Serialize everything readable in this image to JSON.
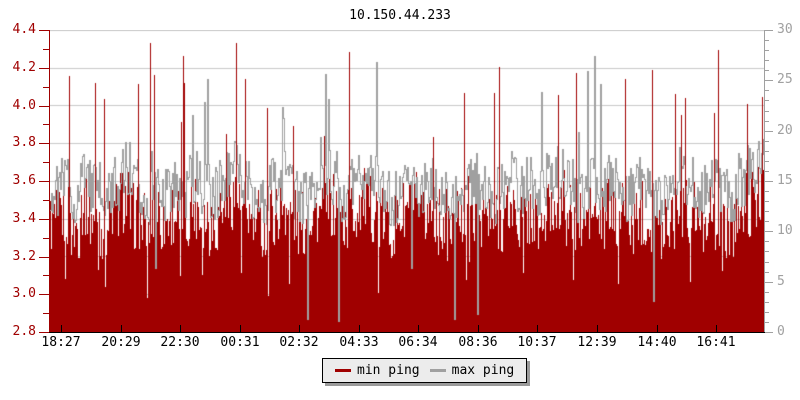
{
  "title": "10.150.44.233",
  "colors": {
    "min_series": "#a00000",
    "max_series": "#a0a0a0",
    "grid": "#c9c9c9",
    "left_axis": "#a00000",
    "right_axis": "#a0a0a0",
    "bottom_axis": "#000000",
    "legend_bg": "#ececec",
    "legend_shadow": "#9a9a9a"
  },
  "legend": {
    "items": [
      {
        "label": "min ping",
        "color": "#a00000",
        "name": "min-ping"
      },
      {
        "label": "max ping",
        "color": "#a0a0a0",
        "name": "max-ping"
      }
    ]
  },
  "chart_data": {
    "type": "area",
    "title": "10.150.44.233",
    "x_tick_labels": [
      "18:27",
      "20:29",
      "22:30",
      "00:31",
      "02:32",
      "04:33",
      "06:34",
      "08:36",
      "10:37",
      "12:39",
      "14:40",
      "16:41"
    ],
    "left_axis": {
      "min": 2.8,
      "max": 4.4,
      "major_step": 0.2,
      "minor_step": 0.1,
      "tick_labels": [
        "4.4",
        "4.2",
        "4.0",
        "3.8",
        "3.6",
        "3.4",
        "3.2",
        "3.0",
        "2.8"
      ]
    },
    "right_axis": {
      "min": 0,
      "max": 30,
      "major_step": 5,
      "minor_step": 1,
      "tick_labels": [
        "30",
        "25",
        "20",
        "15",
        "10",
        "5",
        "0"
      ]
    },
    "grid": "horizontal-major",
    "legend_position": "bottom-center",
    "series": [
      {
        "name": "min ping",
        "type": "filled-area",
        "color": "#a00000",
        "baseline": 2.8,
        "values": [
          3.38,
          3.42,
          3.35,
          3.48,
          3.4,
          3.36,
          3.44,
          3.5,
          3.41,
          3.37,
          3.45,
          3.39,
          3.43,
          3.36,
          3.47,
          3.41,
          3.38,
          3.46,
          3.52,
          3.44,
          3.39,
          3.35,
          3.42,
          3.48,
          3.4,
          3.37,
          3.44,
          3.41,
          3.46,
          3.38,
          3.43,
          3.5,
          3.45,
          3.39,
          3.36,
          3.42,
          3.47,
          3.4,
          3.44,
          3.38,
          3.35,
          3.41,
          3.46,
          3.43,
          3.37,
          3.4,
          3.45,
          3.39,
          3.42,
          3.36,
          3.44,
          3.48,
          3.41,
          3.37,
          3.43,
          3.39,
          3.46,
          3.42,
          3.38,
          3.44,
          3.4,
          3.35,
          3.42,
          3.47,
          3.43,
          3.39,
          3.45,
          3.41,
          3.37,
          3.44,
          3.48,
          3.52
        ]
      },
      {
        "name": "max ping",
        "type": "line",
        "color": "#a0a0a0",
        "values": [
          3.55,
          3.6,
          3.52,
          3.64,
          3.56,
          3.5,
          3.58,
          3.66,
          3.57,
          3.52,
          3.61,
          3.54,
          3.59,
          3.51,
          3.63,
          3.56,
          3.53,
          3.62,
          3.68,
          3.6,
          3.54,
          3.5,
          3.58,
          3.64,
          3.55,
          3.52,
          3.6,
          3.56,
          3.62,
          3.53,
          3.59,
          3.66,
          3.61,
          3.54,
          3.51,
          3.58,
          3.63,
          3.55,
          3.6,
          3.53,
          3.5,
          3.57,
          3.62,
          3.59,
          3.52,
          3.56,
          3.61,
          3.54,
          3.58,
          3.51,
          3.6,
          3.64,
          3.57,
          3.52,
          3.59,
          3.54,
          3.62,
          3.58,
          3.53,
          3.6,
          3.56,
          3.5,
          3.58,
          3.63,
          3.59,
          3.54,
          3.61,
          3.57,
          3.52,
          3.6,
          3.64,
          3.68
        ]
      }
    ],
    "render_noise": {
      "min_jitter": 0.36,
      "max_jitter": 0.3,
      "min_spike_prob": 0.045,
      "min_spike_base": 0.38,
      "min_spike_rand": 0.55,
      "min_dip_prob": 0.02,
      "min_dip_base": 0.25,
      "min_dip_rand": 0.15,
      "max_spike_prob": 0.025,
      "max_spike_base": 0.25,
      "max_spike_rand": 0.45,
      "max_dip_prob": 0.015,
      "max_dip_base": 0.45,
      "max_dip_rand": 0.25,
      "min_clamp": [
        2.82,
        4.33
      ],
      "max_clamp": [
        2.86,
        4.28
      ]
    }
  }
}
